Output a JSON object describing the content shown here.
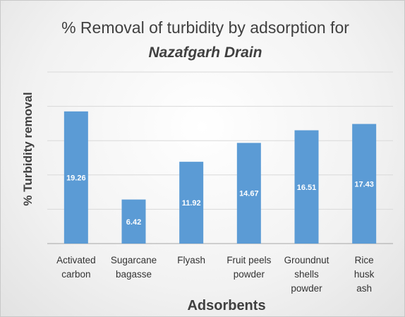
{
  "chart_data": {
    "type": "bar",
    "title": "% Removal of turbidity by adsorption for",
    "subtitle": "Nazafgarh Drain",
    "x_label": "Adsorbents",
    "y_label": "% Turbidity removal",
    "categories": [
      "Activated\ncarbon",
      "Sugarcane\nbagasse",
      "Flyash",
      "Fruit peels\npowder",
      "Groundnut\nshells\npowder",
      "Rice\nhusk\nash"
    ],
    "values": [
      19.26,
      6.42,
      11.92,
      14.67,
      16.51,
      17.43
    ],
    "color": "#5b9bd5",
    "ylim": [
      0,
      25
    ],
    "yticks": [
      0,
      5,
      10,
      15,
      20,
      25
    ],
    "grid": true
  }
}
